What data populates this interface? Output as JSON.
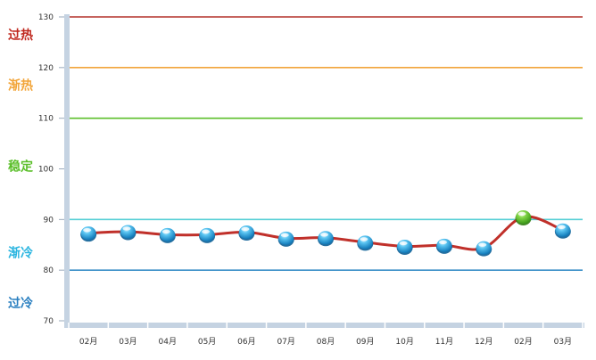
{
  "chart_data": {
    "type": "line",
    "categories": [
      "02月",
      "03月",
      "04月",
      "05月",
      "06月",
      "07月",
      "08月",
      "09月",
      "10月",
      "11月",
      "12月",
      "02月",
      "03月"
    ],
    "values": [
      87.3,
      87.6,
      87.0,
      87.0,
      87.5,
      86.3,
      86.4,
      85.5,
      84.7,
      84.9,
      84.4,
      90.5,
      87.9
    ],
    "highlight_index": 11,
    "ylim": [
      70,
      130
    ],
    "yticks": [
      70,
      80,
      90,
      100,
      110,
      120,
      130
    ],
    "grid": false,
    "reference_lines": [
      {
        "value": 130,
        "color": "#b3312a"
      },
      {
        "value": 120,
        "color": "#f2a53a"
      },
      {
        "value": 110,
        "color": "#5bbf2a"
      },
      {
        "value": 90,
        "color": "#55cfd6"
      },
      {
        "value": 80,
        "color": "#3a8fc8"
      }
    ],
    "zone_labels": [
      {
        "text": "过热",
        "value": 126.5,
        "color": "#c0281e"
      },
      {
        "text": "渐热",
        "value": 116.5,
        "color": "#f2a53a"
      },
      {
        "text": "稳定",
        "value": 100.5,
        "color": "#5bbf2a"
      },
      {
        "text": "渐冷",
        "value": 83.5,
        "color": "#2bb5e0"
      },
      {
        "text": "过冷",
        "value": 73.5,
        "color": "#2a7fc0"
      }
    ],
    "line_color": "#c0302a",
    "marker_color": "#2a9fdc",
    "highlight_color": "#5cbf2a"
  }
}
